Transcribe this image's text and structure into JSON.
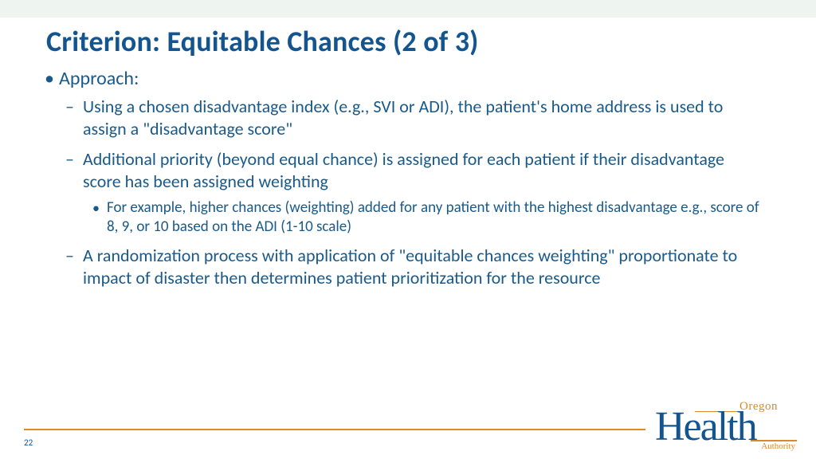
{
  "colors": {
    "title": "#14558f",
    "body": "#1a5a8a",
    "accent": "#e08a2b",
    "topband": "#eef5f0",
    "background": "#ffffff",
    "logo_orange": "#d68a2c"
  },
  "typography": {
    "title_fontsize": 36,
    "title_weight": 700,
    "lvl1_fontsize": 24,
    "lvl2_fontsize": 22,
    "lvl3_fontsize": 19,
    "font_family": "Calibri"
  },
  "slide": {
    "title": "Criterion: Equitable Chances (2 of 3)",
    "page_number": "22",
    "bullets": {
      "l1_0": "Approach:",
      "l2_0": "Using a chosen disadvantage index (e.g., SVI or ADI), the patient's home address is used to assign a \"disadvantage score\"",
      "l2_1": "Additional priority (beyond equal chance) is assigned for each patient if their disadvantage score has been assigned weighting",
      "l3_0": "For example, higher chances (weighting) added for any patient with the highest disadvantage e.g., score of 8, 9, or 10 based on the ADI (1-10 scale)",
      "l2_2": "A randomization process with application of \"equitable chances weighting\" proportionate to impact of disaster then determines patient prioritization for the resource"
    }
  },
  "logo": {
    "main": "Health",
    "top": "Oregon",
    "sub": "Authority"
  }
}
